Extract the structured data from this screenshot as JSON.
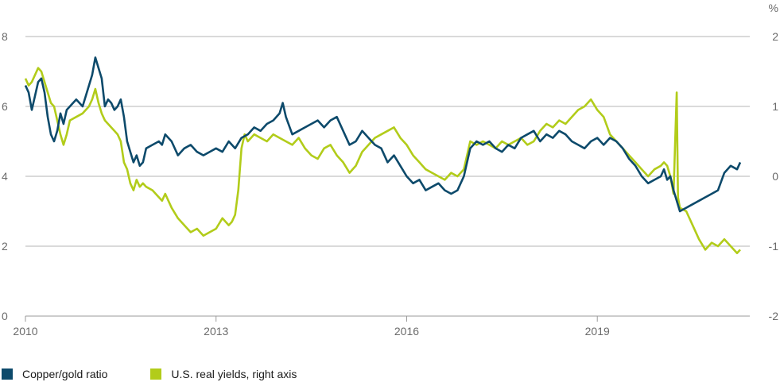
{
  "chart_data": {
    "type": "line",
    "title": "",
    "left_axis": {
      "ylim": [
        0,
        8
      ],
      "ticks": [
        "0",
        "2",
        "4",
        "6",
        "8"
      ]
    },
    "right_axis": {
      "ylim": [
        -2,
        2
      ],
      "ticks": [
        "-2",
        "-1",
        "0",
        "1",
        "2"
      ],
      "unit_label": "%"
    },
    "x_axis": {
      "xlim": [
        2010.0,
        2021.4
      ],
      "ticks": [
        {
          "value": 2010,
          "label": "2010"
        },
        {
          "value": 2013,
          "label": "2013"
        },
        {
          "value": 2016,
          "label": "2016"
        },
        {
          "value": 2019,
          "label": "2019"
        }
      ]
    },
    "grid": true,
    "legend_position": "bottom-left",
    "series": [
      {
        "name": "Copper/gold ratio",
        "axis": "left",
        "color": "#0d4a6b",
        "points": [
          [
            2010.0,
            6.6
          ],
          [
            2010.05,
            6.4
          ],
          [
            2010.1,
            5.9
          ],
          [
            2010.15,
            6.3
          ],
          [
            2010.2,
            6.7
          ],
          [
            2010.25,
            6.8
          ],
          [
            2010.3,
            6.4
          ],
          [
            2010.35,
            5.7
          ],
          [
            2010.4,
            5.2
          ],
          [
            2010.45,
            5.0
          ],
          [
            2010.5,
            5.3
          ],
          [
            2010.55,
            5.8
          ],
          [
            2010.6,
            5.5
          ],
          [
            2010.65,
            5.9
          ],
          [
            2010.7,
            6.0
          ],
          [
            2010.8,
            6.2
          ],
          [
            2010.9,
            6.0
          ],
          [
            2011.0,
            6.6
          ],
          [
            2011.05,
            6.9
          ],
          [
            2011.1,
            7.4
          ],
          [
            2011.15,
            7.1
          ],
          [
            2011.2,
            6.8
          ],
          [
            2011.25,
            6.0
          ],
          [
            2011.3,
            6.2
          ],
          [
            2011.35,
            6.1
          ],
          [
            2011.4,
            5.9
          ],
          [
            2011.45,
            6.0
          ],
          [
            2011.5,
            6.2
          ],
          [
            2011.55,
            5.7
          ],
          [
            2011.6,
            5.0
          ],
          [
            2011.65,
            4.7
          ],
          [
            2011.7,
            4.4
          ],
          [
            2011.75,
            4.6
          ],
          [
            2011.8,
            4.3
          ],
          [
            2011.85,
            4.4
          ],
          [
            2011.9,
            4.8
          ],
          [
            2012.0,
            4.9
          ],
          [
            2012.1,
            5.0
          ],
          [
            2012.15,
            4.9
          ],
          [
            2012.2,
            5.2
          ],
          [
            2012.3,
            5.0
          ],
          [
            2012.4,
            4.6
          ],
          [
            2012.5,
            4.8
          ],
          [
            2012.6,
            4.9
          ],
          [
            2012.7,
            4.7
          ],
          [
            2012.8,
            4.6
          ],
          [
            2012.9,
            4.7
          ],
          [
            2013.0,
            4.8
          ],
          [
            2013.1,
            4.7
          ],
          [
            2013.2,
            5.0
          ],
          [
            2013.3,
            4.8
          ],
          [
            2013.4,
            5.1
          ],
          [
            2013.5,
            5.2
          ],
          [
            2013.6,
            5.4
          ],
          [
            2013.7,
            5.3
          ],
          [
            2013.8,
            5.5
          ],
          [
            2013.9,
            5.6
          ],
          [
            2014.0,
            5.8
          ],
          [
            2014.05,
            6.1
          ],
          [
            2014.1,
            5.7
          ],
          [
            2014.2,
            5.2
          ],
          [
            2014.3,
            5.3
          ],
          [
            2014.4,
            5.4
          ],
          [
            2014.5,
            5.5
          ],
          [
            2014.6,
            5.6
          ],
          [
            2014.7,
            5.4
          ],
          [
            2014.8,
            5.6
          ],
          [
            2014.9,
            5.7
          ],
          [
            2015.0,
            5.3
          ],
          [
            2015.1,
            4.9
          ],
          [
            2015.2,
            5.0
          ],
          [
            2015.3,
            5.3
          ],
          [
            2015.4,
            5.1
          ],
          [
            2015.5,
            4.9
          ],
          [
            2015.6,
            4.8
          ],
          [
            2015.7,
            4.4
          ],
          [
            2015.8,
            4.6
          ],
          [
            2015.9,
            4.3
          ],
          [
            2016.0,
            4.0
          ],
          [
            2016.1,
            3.8
          ],
          [
            2016.2,
            3.9
          ],
          [
            2016.3,
            3.6
          ],
          [
            2016.4,
            3.7
          ],
          [
            2016.5,
            3.8
          ],
          [
            2016.6,
            3.6
          ],
          [
            2016.7,
            3.5
          ],
          [
            2016.8,
            3.6
          ],
          [
            2016.9,
            4.0
          ],
          [
            2017.0,
            4.8
          ],
          [
            2017.1,
            5.0
          ],
          [
            2017.2,
            4.9
          ],
          [
            2017.3,
            5.0
          ],
          [
            2017.4,
            4.8
          ],
          [
            2017.5,
            4.7
          ],
          [
            2017.6,
            4.9
          ],
          [
            2017.7,
            4.8
          ],
          [
            2017.8,
            5.1
          ],
          [
            2017.9,
            5.2
          ],
          [
            2018.0,
            5.3
          ],
          [
            2018.1,
            5.0
          ],
          [
            2018.2,
            5.2
          ],
          [
            2018.3,
            5.1
          ],
          [
            2018.4,
            5.3
          ],
          [
            2018.5,
            5.2
          ],
          [
            2018.6,
            5.0
          ],
          [
            2018.7,
            4.9
          ],
          [
            2018.8,
            4.8
          ],
          [
            2018.9,
            5.0
          ],
          [
            2019.0,
            5.1
          ],
          [
            2019.1,
            4.9
          ],
          [
            2019.2,
            5.1
          ],
          [
            2019.3,
            5.0
          ],
          [
            2019.4,
            4.8
          ],
          [
            2019.5,
            4.5
          ],
          [
            2019.6,
            4.3
          ],
          [
            2019.7,
            4.0
          ],
          [
            2019.8,
            3.8
          ],
          [
            2019.9,
            3.9
          ],
          [
            2020.0,
            4.0
          ],
          [
            2020.05,
            4.2
          ],
          [
            2020.1,
            3.9
          ],
          [
            2020.15,
            4.0
          ],
          [
            2020.2,
            3.6
          ],
          [
            2020.25,
            3.3
          ],
          [
            2020.3,
            3.0
          ],
          [
            2020.4,
            3.1
          ],
          [
            2020.5,
            3.2
          ],
          [
            2020.6,
            3.3
          ],
          [
            2020.7,
            3.4
          ],
          [
            2020.8,
            3.5
          ],
          [
            2020.9,
            3.6
          ],
          [
            2021.0,
            4.1
          ],
          [
            2021.1,
            4.3
          ],
          [
            2021.2,
            4.2
          ],
          [
            2021.25,
            4.4
          ]
        ]
      },
      {
        "name": "U.S. real yields, right axis",
        "axis": "right",
        "color": "#b2cc1a",
        "points": [
          [
            2010.0,
            1.4
          ],
          [
            2010.05,
            1.3
          ],
          [
            2010.1,
            1.35
          ],
          [
            2010.15,
            1.45
          ],
          [
            2010.2,
            1.55
          ],
          [
            2010.25,
            1.5
          ],
          [
            2010.3,
            1.35
          ],
          [
            2010.35,
            1.2
          ],
          [
            2010.4,
            1.05
          ],
          [
            2010.45,
            1.0
          ],
          [
            2010.5,
            0.8
          ],
          [
            2010.55,
            0.6
          ],
          [
            2010.6,
            0.45
          ],
          [
            2010.65,
            0.6
          ],
          [
            2010.7,
            0.8
          ],
          [
            2010.8,
            0.85
          ],
          [
            2010.9,
            0.9
          ],
          [
            2011.0,
            1.0
          ],
          [
            2011.05,
            1.1
          ],
          [
            2011.1,
            1.25
          ],
          [
            2011.15,
            1.05
          ],
          [
            2011.2,
            0.9
          ],
          [
            2011.25,
            0.8
          ],
          [
            2011.3,
            0.75
          ],
          [
            2011.35,
            0.7
          ],
          [
            2011.4,
            0.65
          ],
          [
            2011.45,
            0.6
          ],
          [
            2011.5,
            0.5
          ],
          [
            2011.55,
            0.2
          ],
          [
            2011.6,
            0.1
          ],
          [
            2011.65,
            -0.1
          ],
          [
            2011.7,
            -0.2
          ],
          [
            2011.75,
            -0.05
          ],
          [
            2011.8,
            -0.15
          ],
          [
            2011.85,
            -0.1
          ],
          [
            2011.9,
            -0.15
          ],
          [
            2012.0,
            -0.2
          ],
          [
            2012.1,
            -0.3
          ],
          [
            2012.15,
            -0.35
          ],
          [
            2012.2,
            -0.25
          ],
          [
            2012.3,
            -0.45
          ],
          [
            2012.4,
            -0.6
          ],
          [
            2012.5,
            -0.7
          ],
          [
            2012.6,
            -0.8
          ],
          [
            2012.7,
            -0.75
          ],
          [
            2012.8,
            -0.85
          ],
          [
            2012.9,
            -0.8
          ],
          [
            2013.0,
            -0.75
          ],
          [
            2013.1,
            -0.6
          ],
          [
            2013.2,
            -0.7
          ],
          [
            2013.25,
            -0.65
          ],
          [
            2013.3,
            -0.55
          ],
          [
            2013.35,
            -0.2
          ],
          [
            2013.4,
            0.4
          ],
          [
            2013.45,
            0.6
          ],
          [
            2013.5,
            0.5
          ],
          [
            2013.6,
            0.6
          ],
          [
            2013.7,
            0.55
          ],
          [
            2013.8,
            0.5
          ],
          [
            2013.9,
            0.6
          ],
          [
            2014.0,
            0.55
          ],
          [
            2014.1,
            0.5
          ],
          [
            2014.2,
            0.45
          ],
          [
            2014.3,
            0.55
          ],
          [
            2014.4,
            0.4
          ],
          [
            2014.5,
            0.3
          ],
          [
            2014.6,
            0.25
          ],
          [
            2014.7,
            0.4
          ],
          [
            2014.8,
            0.45
          ],
          [
            2014.9,
            0.3
          ],
          [
            2015.0,
            0.2
          ],
          [
            2015.1,
            0.05
          ],
          [
            2015.2,
            0.15
          ],
          [
            2015.3,
            0.35
          ],
          [
            2015.4,
            0.45
          ],
          [
            2015.5,
            0.55
          ],
          [
            2015.6,
            0.6
          ],
          [
            2015.7,
            0.65
          ],
          [
            2015.8,
            0.7
          ],
          [
            2015.9,
            0.55
          ],
          [
            2016.0,
            0.45
          ],
          [
            2016.1,
            0.3
          ],
          [
            2016.2,
            0.2
          ],
          [
            2016.3,
            0.1
          ],
          [
            2016.4,
            0.05
          ],
          [
            2016.5,
            0.0
          ],
          [
            2016.6,
            -0.05
          ],
          [
            2016.7,
            0.05
          ],
          [
            2016.8,
            0.0
          ],
          [
            2016.9,
            0.1
          ],
          [
            2017.0,
            0.5
          ],
          [
            2017.1,
            0.45
          ],
          [
            2017.2,
            0.5
          ],
          [
            2017.3,
            0.45
          ],
          [
            2017.4,
            0.4
          ],
          [
            2017.5,
            0.5
          ],
          [
            2017.6,
            0.45
          ],
          [
            2017.7,
            0.5
          ],
          [
            2017.8,
            0.55
          ],
          [
            2017.9,
            0.45
          ],
          [
            2018.0,
            0.5
          ],
          [
            2018.1,
            0.65
          ],
          [
            2018.2,
            0.75
          ],
          [
            2018.3,
            0.7
          ],
          [
            2018.4,
            0.8
          ],
          [
            2018.5,
            0.75
          ],
          [
            2018.6,
            0.85
          ],
          [
            2018.7,
            0.95
          ],
          [
            2018.8,
            1.0
          ],
          [
            2018.9,
            1.1
          ],
          [
            2019.0,
            0.95
          ],
          [
            2019.1,
            0.85
          ],
          [
            2019.2,
            0.6
          ],
          [
            2019.3,
            0.5
          ],
          [
            2019.4,
            0.4
          ],
          [
            2019.5,
            0.3
          ],
          [
            2019.6,
            0.2
          ],
          [
            2019.7,
            0.1
          ],
          [
            2019.8,
            0.0
          ],
          [
            2019.9,
            0.1
          ],
          [
            2020.0,
            0.15
          ],
          [
            2020.05,
            0.2
          ],
          [
            2020.1,
            0.15
          ],
          [
            2020.15,
            0.0
          ],
          [
            2020.2,
            -0.25
          ],
          [
            2020.25,
            1.2
          ],
          [
            2020.27,
            -0.3
          ],
          [
            2020.3,
            -0.45
          ],
          [
            2020.4,
            -0.5
          ],
          [
            2020.5,
            -0.7
          ],
          [
            2020.6,
            -0.9
          ],
          [
            2020.7,
            -1.05
          ],
          [
            2020.8,
            -0.95
          ],
          [
            2020.9,
            -1.0
          ],
          [
            2021.0,
            -0.9
          ],
          [
            2021.1,
            -1.0
          ],
          [
            2021.2,
            -1.1
          ],
          [
            2021.25,
            -1.05
          ]
        ]
      }
    ]
  }
}
